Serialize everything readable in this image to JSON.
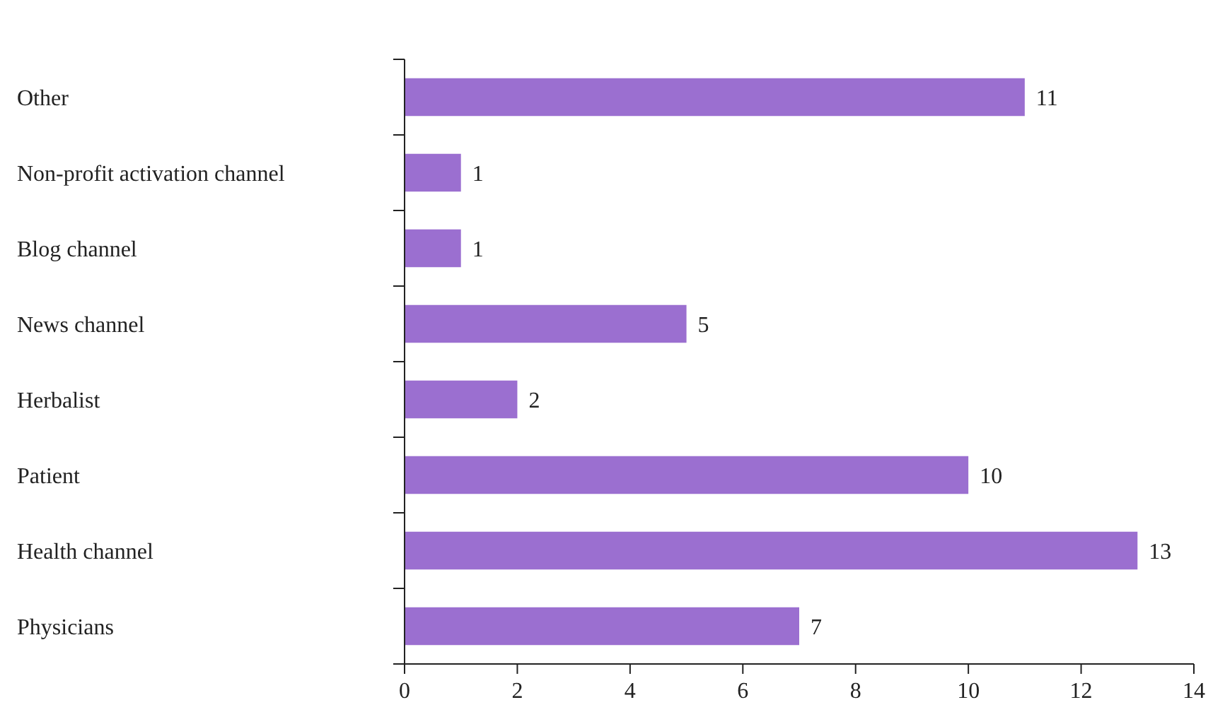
{
  "chart_data": {
    "type": "bar",
    "orientation": "horizontal",
    "categories": [
      "Other",
      "Non-profit activation channel",
      "Blog channel",
      "News channel",
      "Herbalist",
      "Patient",
      "Health channel",
      "Physicians"
    ],
    "values": [
      11,
      1,
      1,
      5,
      2,
      10,
      13,
      7
    ],
    "color": "#9b6fd0",
    "data_labels": true,
    "xlim": [
      0,
      14
    ],
    "xticks": [
      0,
      2,
      4,
      6,
      8,
      10,
      12,
      14
    ],
    "grid": false
  }
}
